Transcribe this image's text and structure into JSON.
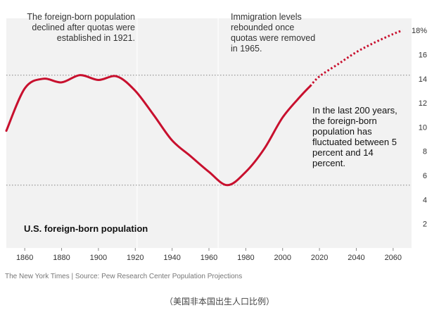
{
  "chart_data": {
    "type": "line",
    "title": "U.S. foreign-born population",
    "x_ticks": [
      1860,
      1880,
      1900,
      1920,
      1940,
      1960,
      1980,
      2000,
      2020,
      2040,
      2060
    ],
    "y_ticks": [
      "2",
      "4",
      "6",
      "8",
      "10",
      "12",
      "14",
      "16",
      "18%"
    ],
    "xlim": [
      1850,
      2070
    ],
    "ylim": [
      0,
      19
    ],
    "reference_lines": [
      14.3,
      5.2
    ],
    "vertical_markers": [
      1921,
      1965
    ],
    "historical": {
      "x": [
        1850,
        1860,
        1870,
        1880,
        1890,
        1900,
        1910,
        1920,
        1930,
        1940,
        1950,
        1960,
        1970,
        1980,
        1990,
        2000,
        2010,
        2015
      ],
      "y": [
        9.7,
        13.2,
        14.0,
        13.7,
        14.3,
        13.9,
        14.2,
        13.0,
        11.0,
        8.9,
        7.6,
        6.3,
        5.2,
        6.3,
        8.2,
        10.8,
        12.6,
        13.4
      ]
    },
    "projection": {
      "x": [
        2015,
        2020,
        2030,
        2040,
        2050,
        2060,
        2065
      ],
      "y": [
        13.4,
        14.2,
        15.2,
        16.2,
        17.0,
        17.7,
        18.0
      ]
    },
    "colors": {
      "line": "#c8102e",
      "band": "#f2f2f2",
      "reference": "#999999",
      "axis_text": "#333333"
    }
  },
  "annotations": {
    "quota": "The foreign-born population declined after quotas were established in 1921.",
    "rebound": "Immigration levels rebounded once quotas were removed in 1965.",
    "range": "In the last 200 years, the foreign-born population has fluctuated between 5 percent and 14 percent."
  },
  "chart_title": "U.S. foreign-born population",
  "footer": "The New York Times  |  Source: Pew Research Center Population Projections",
  "caption": "（美国非本国出生人口比例）"
}
